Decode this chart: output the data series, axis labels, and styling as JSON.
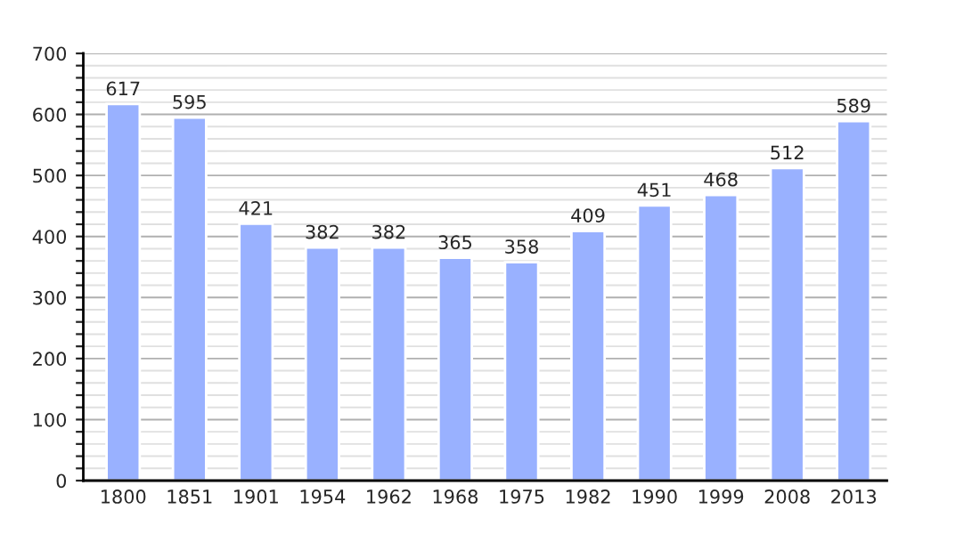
{
  "chart_data": {
    "type": "bar",
    "categories": [
      "1800",
      "1851",
      "1901",
      "1954",
      "1962",
      "1968",
      "1975",
      "1982",
      "1990",
      "1999",
      "2008",
      "2013"
    ],
    "values": [
      617,
      595,
      421,
      382,
      382,
      365,
      358,
      409,
      451,
      468,
      512,
      589
    ],
    "color": "#99b1ff",
    "ylim": [
      0,
      700
    ],
    "yticks": [
      0,
      {
        "value": 20,
        "label": null
      },
      {
        "value": 40,
        "label": null
      },
      {
        "value": 60,
        "label": null
      },
      {
        "value": 80,
        "label": null
      },
      100,
      {
        "value": 120,
        "label": null
      },
      {
        "value": 140,
        "label": null
      },
      {
        "value": 160,
        "label": null
      },
      {
        "value": 180,
        "label": null
      },
      200,
      {
        "value": 220,
        "label": null
      },
      {
        "value": 240,
        "label": null
      },
      {
        "value": 260,
        "label": null
      },
      {
        "value": 280,
        "label": null
      },
      300,
      {
        "value": 320,
        "label": null
      },
      {
        "value": 340,
        "label": null
      },
      {
        "value": 360,
        "label": null
      },
      {
        "value": 380,
        "label": null
      },
      400,
      {
        "value": 420,
        "label": null
      },
      {
        "value": 440,
        "label": null
      },
      {
        "value": 460,
        "label": null
      },
      {
        "value": 480,
        "label": null
      },
      500,
      {
        "value": 520,
        "label": null
      },
      {
        "value": 540,
        "label": null
      },
      {
        "value": 560,
        "label": null
      },
      {
        "value": 580,
        "label": null
      },
      600,
      {
        "value": 620,
        "label": null
      },
      {
        "value": 640,
        "label": null
      },
      {
        "value": 660,
        "label": null
      },
      {
        "value": 680,
        "label": null
      },
      700
    ],
    "grid": "y",
    "data_labels": true
  }
}
